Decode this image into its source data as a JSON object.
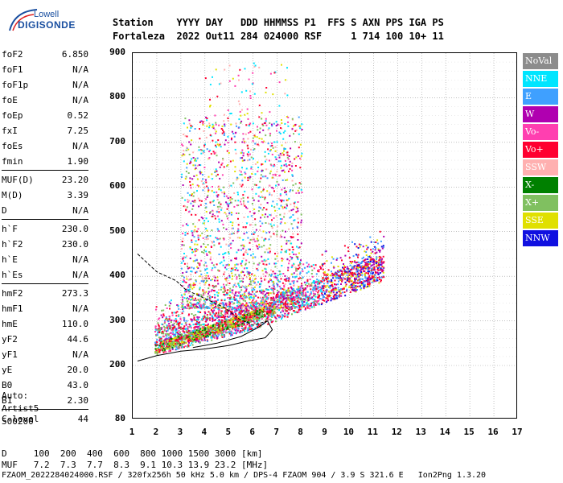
{
  "logo": {
    "line1": "Lowell",
    "line2": "DIGISONDE"
  },
  "header": {
    "line1": "Station    YYYY DAY   DDD HHMMSS P1  FFS S AXN PPS IGA PS",
    "line2": "Fortaleza  2022 Out11 284 024000 RSF     1 714 100 10+ 11"
  },
  "params": [
    {
      "k": "foF2",
      "v": "6.850"
    },
    {
      "k": "foF1",
      "v": "N/A"
    },
    {
      "k": "foF1p",
      "v": "N/A"
    },
    {
      "k": "foE",
      "v": "N/A"
    },
    {
      "k": "foEp",
      "v": "0.52"
    },
    {
      "k": "fxI",
      "v": "7.25"
    },
    {
      "k": "foEs",
      "v": "N/A"
    },
    {
      "k": "fmin",
      "v": "1.90"
    },
    {
      "k": "MUF(D)",
      "v": "23.20"
    },
    {
      "k": "M(D)",
      "v": "3.39"
    },
    {
      "k": "D",
      "v": "N/A"
    },
    {
      "k": "h`F",
      "v": "230.0"
    },
    {
      "k": "h`F2",
      "v": "230.0"
    },
    {
      "k": "h`E",
      "v": "N/A"
    },
    {
      "k": "h`Es",
      "v": "N/A"
    },
    {
      "k": "hmF2",
      "v": "273.3"
    },
    {
      "k": "hmF1",
      "v": "N/A"
    },
    {
      "k": "hmE",
      "v": "110.0"
    },
    {
      "k": "yF2",
      "v": "44.6"
    },
    {
      "k": "yF1",
      "v": "N/A"
    },
    {
      "k": "yE",
      "v": "20.0"
    },
    {
      "k": "B0",
      "v": "43.0"
    },
    {
      "k": "B1",
      "v": "2.30"
    },
    {
      "k": "C-level",
      "v": "44"
    }
  ],
  "auto": [
    "Auto:",
    "Artist5",
    "500200"
  ],
  "legend": [
    {
      "label": "NoVal",
      "color": "#8c8c8c"
    },
    {
      "label": "NNE",
      "color": "#00e5ff"
    },
    {
      "label": "E",
      "color": "#3fa0ff"
    },
    {
      "label": "W",
      "color": "#b000b0"
    },
    {
      "label": "Vo-",
      "color": "#ff3fb0"
    },
    {
      "label": "Vo+",
      "color": "#ff0030"
    },
    {
      "label": "SSW",
      "color": "#ffb0b0"
    },
    {
      "label": "X-",
      "color": "#008000"
    },
    {
      "label": "X+",
      "color": "#80c060"
    },
    {
      "label": "SSE",
      "color": "#e0e000"
    },
    {
      "label": "NNW",
      "color": "#1010e0"
    }
  ],
  "footer": {
    "d_line": "D     100  200  400  600  800 1000 1500 3000 [km]",
    "muf_line": "MUF   7.2  7.3  7.7  8.3  9.1 10.3 13.9 23.2 [MHz]",
    "file_line": "FZAOM_2022284024000.RSF / 320fx256h 50 kHz 5.0 km / DPS-4 FZAOM 904 / 3.9 S 321.6 E   Ion2Png 1.3.20"
  },
  "chart_data": {
    "type": "scatter",
    "xlim": [
      1,
      17
    ],
    "ylim": [
      80,
      900
    ],
    "x_ticks": [
      "1",
      "2",
      "3",
      "4",
      "5",
      "6",
      "7",
      "8",
      "9",
      "10",
      "11",
      "12",
      "13",
      "14",
      "15",
      "16",
      "17"
    ],
    "y_ticks": [
      "80",
      "200",
      "300",
      "400",
      "500",
      "600",
      "700",
      "800",
      "900"
    ],
    "grid": true
  }
}
